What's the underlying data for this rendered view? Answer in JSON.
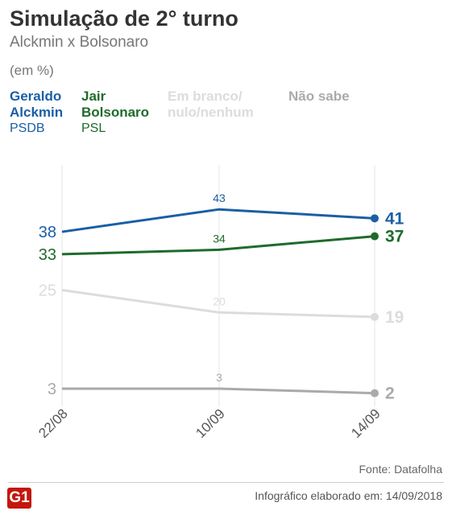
{
  "header": {
    "title": "Simulação de 2° turno",
    "subtitle": "Alckmin x Bolsonaro",
    "unit": "(em %)"
  },
  "footer": {
    "source": "Fonte: Datafolha",
    "credit": "Infográfico elaborado em: 14/09/2018",
    "logo": "G1",
    "logo_color": "#c4170c"
  },
  "chart_data": {
    "type": "line",
    "x": [
      "22/08",
      "10/09",
      "14/09"
    ],
    "series": [
      {
        "name": "Geraldo\nAlckmin",
        "party": "PSDB",
        "values": [
          38,
          43,
          41
        ],
        "color": "#1a5fa6"
      },
      {
        "name": "Jair\nBolsonaro",
        "party": "PSL",
        "values": [
          33,
          34,
          37
        ],
        "color": "#1e6b2b"
      },
      {
        "name": "Em branco/\nnulo/nenhum",
        "party": "",
        "values": [
          25,
          20,
          19
        ],
        "color": "#dcdcdc"
      },
      {
        "name": "Não sabe",
        "party": "",
        "values": [
          3,
          3,
          2
        ],
        "color": "#aaaaaa"
      }
    ],
    "grid": false,
    "legend_position": "top"
  }
}
